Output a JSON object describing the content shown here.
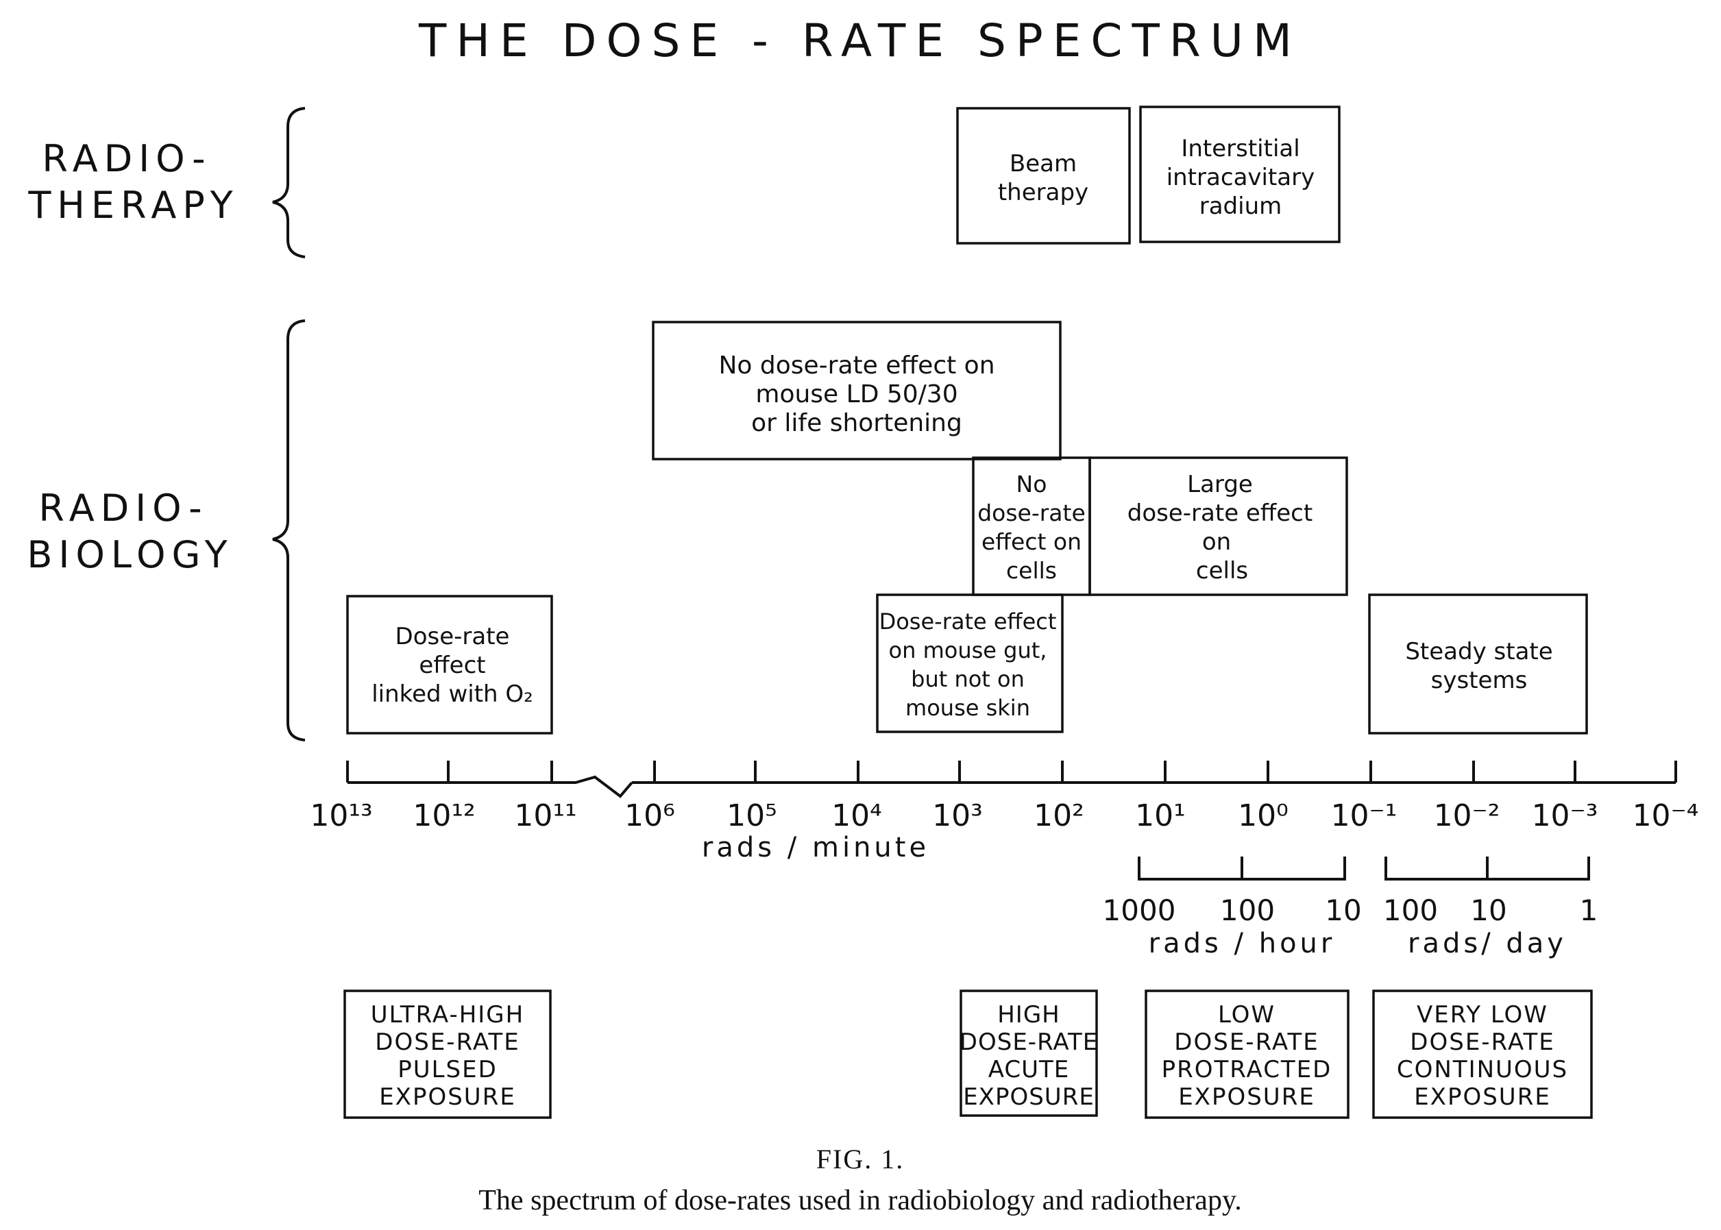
{
  "title": "THE DOSE - RATE SPECTRUM",
  "sections": {
    "radiotherapy": [
      "RADIO-",
      "THERAPY"
    ],
    "radiobiology": [
      "RADIO-",
      "BIOLOGY"
    ]
  },
  "radiotherapy_boxes": {
    "beam": [
      "Beam",
      "therapy"
    ],
    "interstitial": [
      "Interstitial",
      "intracavitary",
      "radium"
    ]
  },
  "radiobiology_boxes": {
    "no_effect_mouse": [
      "No dose-rate effect on",
      "mouse LD 50/30",
      "or life shortening"
    ],
    "no_effect_cells": [
      "No",
      "dose-rate",
      "effect on",
      "cells"
    ],
    "large_effect_cells": [
      "Large",
      "dose-rate effect",
      "on",
      "cells"
    ],
    "o2_linked": [
      "Dose-rate",
      "effect",
      "linked with O₂"
    ],
    "mouse_gut": [
      "Dose-rate effect",
      "on mouse gut,",
      "but not on",
      "mouse skin"
    ],
    "steady_state": [
      "Steady state",
      "systems"
    ]
  },
  "axis": {
    "ticks": [
      "10¹³",
      "10¹²",
      "10¹¹",
      "10⁶",
      "10⁵",
      "10⁴",
      "10³",
      "10²",
      "10¹",
      "10⁰",
      "10⁻¹",
      "10⁻²",
      "10⁻³",
      "10⁻⁴"
    ],
    "unit": "rads / minute"
  },
  "hour_scale": {
    "ticks": [
      "1000",
      "100",
      "10"
    ],
    "unit": "rads / hour"
  },
  "day_scale": {
    "ticks": [
      "100",
      "10",
      "1"
    ],
    "unit": "rads/ day"
  },
  "categories": {
    "ultra_high": [
      "ULTRA-HIGH",
      "DOSE-RATE",
      "PULSED",
      "EXPOSURE"
    ],
    "high": [
      "HIGH",
      "DOSE-RATE",
      "ACUTE",
      "EXPOSURE"
    ],
    "low": [
      "LOW",
      "DOSE-RATE",
      "PROTRACTED",
      "EXPOSURE"
    ],
    "very_low": [
      "VERY LOW",
      "DOSE-RATE",
      "CONTINUOUS",
      "EXPOSURE"
    ]
  },
  "caption": {
    "fig_label": "FIG. 1.",
    "text": "The spectrum of dose-rates used in radiobiology and radiotherapy."
  }
}
